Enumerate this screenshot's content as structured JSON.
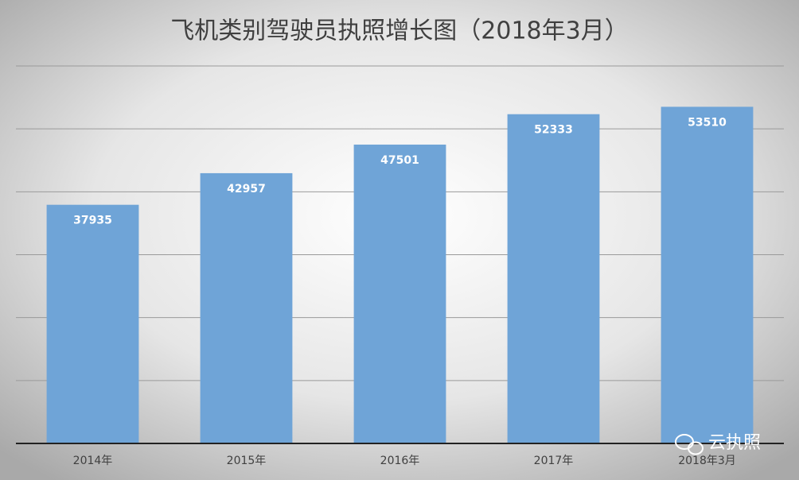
{
  "chart_data": {
    "type": "bar",
    "title": "飞机类别驾驶员执照增长图（2018年3月）",
    "categories": [
      "2014年",
      "2015年",
      "2016年",
      "2017年",
      "2018年3月"
    ],
    "values": [
      37935,
      42957,
      47501,
      52333,
      53510
    ],
    "color": "#6fa4d7",
    "ylim": [
      0,
      60000
    ],
    "yticks": [
      0,
      10000,
      20000,
      30000,
      40000,
      50000,
      60000
    ],
    "grid": true,
    "watermark": "云执照"
  }
}
